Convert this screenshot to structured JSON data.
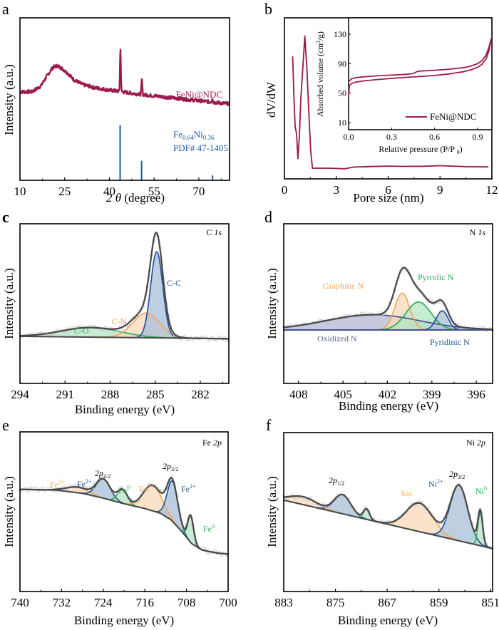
{
  "figure": {
    "panel_labels": [
      "a",
      "b",
      "c",
      "d",
      "e",
      "f"
    ]
  },
  "colors": {
    "xrd_curve": "#9b1b4e",
    "ref_stick": "#1f57a6",
    "envelope": "#4a4a4a",
    "blue_comp": "#22569a",
    "blue_fill": "#a9bfd8",
    "orange_comp": "#f4a65a",
    "orange_fill": "#f8d9b8",
    "green_comp": "#2ab058",
    "green_fill": "#b6e4c4",
    "purple_comp": "#4a4f8c",
    "purple_fill": "#b4b8d4",
    "brown_fill": "#c8a898",
    "raw_points": "#c8c8c8"
  },
  "chart_data": [
    {
      "id": "a",
      "type": "line",
      "title": "",
      "xlabel": "2 θ (degree)",
      "ylabel": "Intensity (a.u.)",
      "xlim": [
        10,
        80.3
      ],
      "ylim": [
        0,
        1
      ],
      "xticks": [
        10,
        25,
        40,
        55,
        70
      ],
      "yticks": [],
      "series": [
        {
          "name": "FeNi@NDC",
          "type": "xrd",
          "baseline_points": [
            [
              10,
              0.545
            ],
            [
              14,
              0.545
            ],
            [
              17,
              0.58
            ],
            [
              19,
              0.64
            ],
            [
              21,
              0.695
            ],
            [
              22.5,
              0.705
            ],
            [
              24,
              0.69
            ],
            [
              26,
              0.66
            ],
            [
              28,
              0.62
            ],
            [
              31,
              0.59
            ],
            [
              35,
              0.57
            ],
            [
              40,
              0.555
            ],
            [
              43,
              0.548
            ],
            [
              46,
              0.54
            ],
            [
              50,
              0.53
            ],
            [
              55,
              0.52
            ],
            [
              60,
              0.51
            ],
            [
              65,
              0.5
            ],
            [
              70,
              0.49
            ],
            [
              75,
              0.48
            ],
            [
              80.3,
              0.47
            ]
          ],
          "peaks": [
            {
              "x": 43.7,
              "height": 0.26,
              "width": 0.35
            },
            {
              "x": 50.9,
              "height": 0.09,
              "width": 0.35
            },
            {
              "x": 74.5,
              "height": 0.025,
              "width": 0.4
            }
          ]
        },
        {
          "name": "Fe0.64Ni0.36 PDF# 47-1405",
          "type": "sticks",
          "x": [
            43.6,
            50.8,
            74.6
          ],
          "y": [
            0.34,
            0.12,
            0.03
          ]
        }
      ],
      "annotations": [
        {
          "text": "FeNi@NDC",
          "color_key": "xrd_curve"
        },
        {
          "text": "Fe",
          "sub1": "0.64",
          "text2": "Ni",
          "sub2": "0.36",
          "color_key": "ref_stick"
        },
        {
          "text": "PDF# 47-1405",
          "color_key": "ref_stick"
        }
      ]
    },
    {
      "id": "b",
      "type": "line",
      "xlabel": "Pore size (nm)",
      "ylabel": "dV/dW",
      "xlim": [
        0,
        12
      ],
      "ylim": [
        0,
        1
      ],
      "xticks": [
        0,
        3,
        6,
        9,
        12
      ],
      "series": [
        {
          "name": "PSD",
          "x": [
            0.48,
            0.55,
            0.62,
            0.7,
            0.78,
            0.86,
            0.95,
            1.05,
            1.18,
            1.3,
            1.42,
            1.52,
            1.62,
            2.0,
            2.5,
            3.0,
            3.5,
            4.0,
            5.0,
            6.0,
            7.0,
            8.0,
            9.0,
            9.5,
            10.5,
            11.8
          ],
          "y": [
            0.8,
            0.52,
            0.3,
            0.25,
            0.07,
            0.22,
            0.5,
            0.7,
            0.95,
            0.72,
            0.38,
            0.12,
            0.0,
            0.0,
            0.0,
            -0.002,
            -0.004,
            0.008,
            0.012,
            0.015,
            0.013,
            0.014,
            0.018,
            0.016,
            0.011,
            0.009
          ]
        }
      ],
      "inset": {
        "xlabel": "Relative pressure (P/P 0)",
        "ylabel": "Absorbed volume (cm3/g)",
        "xlim": [
          0,
          1.0
        ],
        "ylim": [
          0,
          145
        ],
        "xticks": [
          0.0,
          0.3,
          0.6,
          0.9
        ],
        "yticks": [
          10,
          50,
          90,
          130
        ],
        "legend": "FeNi@NDC",
        "legend_position": "bottom-right",
        "series": [
          {
            "name": "adsorption",
            "x": [
              0.0,
              0.005,
              0.02,
              0.05,
              0.1,
              0.2,
              0.3,
              0.4,
              0.5,
              0.6,
              0.7,
              0.8,
              0.85,
              0.9,
              0.93,
              0.96,
              0.98,
              0.995
            ],
            "y": [
              45,
              60,
              63,
              65,
              66.5,
              68.5,
              70,
              71.5,
              72.5,
              74,
              76,
              79,
              81.5,
              85,
              89,
              97,
              108,
              124
            ]
          },
          {
            "name": "desorption",
            "x": [
              0.995,
              0.98,
              0.96,
              0.93,
              0.9,
              0.85,
              0.8,
              0.7,
              0.6,
              0.5,
              0.48,
              0.45,
              0.4,
              0.3,
              0.2,
              0.1,
              0.05,
              0.02,
              0.005
            ],
            "y": [
              124,
              113,
              102,
              94,
              90,
              86.5,
              84.5,
              82.5,
              81,
              80,
              79.5,
              76.5,
              75.5,
              74.5,
              73.5,
              72,
              71,
              69.5,
              66
            ]
          }
        ]
      }
    },
    {
      "id": "c",
      "type": "line",
      "xlabel": "Binding energy (eV)",
      "ylabel": "Intensity (a.u.)",
      "xlim": [
        294,
        280.1
      ],
      "ylim": [
        0,
        1
      ],
      "xticks": [
        294,
        291,
        288,
        285,
        282
      ],
      "region_label": "C 1s",
      "baseline": [
        [
          294,
          0.295
        ],
        [
          280.1,
          0.28
        ]
      ],
      "components": [
        {
          "name": "C-O",
          "center": 289.3,
          "fwhm": 4.6,
          "height": 0.06,
          "color": "green"
        },
        {
          "name": "C-N",
          "center": 285.6,
          "fwhm": 2.1,
          "height": 0.155,
          "color": "orange"
        },
        {
          "name": "C-C",
          "center": 284.9,
          "fwhm": 0.95,
          "height": 0.54,
          "color": "blue"
        }
      ],
      "envelope_peak": 0.675
    },
    {
      "id": "d",
      "type": "line",
      "xlabel": "Binding energy (eV)",
      "ylabel": "Intensity (a.u.)",
      "xlim": [
        409.0,
        394.9
      ],
      "ylim": [
        0,
        1
      ],
      "xticks": [
        408,
        405,
        402,
        399,
        396
      ],
      "region_label": "N 1s",
      "baseline": [
        [
          409.0,
          0.335
        ],
        [
          394.9,
          0.335
        ]
      ],
      "components": [
        {
          "name": "Oxidized N",
          "center": 403.0,
          "fwhm": 7.5,
          "height": 0.095,
          "color": "purple"
        },
        {
          "name": "Graphitic N",
          "center": 401.0,
          "fwhm": 1.2,
          "height": 0.23,
          "color": "orange"
        },
        {
          "name": "Pyrrolic N",
          "center": 399.9,
          "fwhm": 2.0,
          "height": 0.175,
          "color": "green"
        },
        {
          "name": "Pyridinic N",
          "center": 398.3,
          "fwhm": 0.95,
          "height": 0.12,
          "color": "blue"
        }
      ]
    },
    {
      "id": "e",
      "type": "line",
      "xlabel": "Binding energy (eV)",
      "ylabel": "Intensity (a.u.)",
      "xlim": [
        740,
        700
      ],
      "ylim": [
        0,
        1
      ],
      "xticks": [
        740,
        732,
        724,
        716,
        708,
        700
      ],
      "region_label": "Fe 2p",
      "baseline": [
        [
          740,
          0.64
        ],
        [
          733,
          0.635
        ],
        [
          728,
          0.615
        ],
        [
          724,
          0.585
        ],
        [
          720,
          0.55
        ],
        [
          716,
          0.52
        ],
        [
          713,
          0.49
        ],
        [
          711,
          0.45
        ],
        [
          709,
          0.38
        ],
        [
          707,
          0.3
        ],
        [
          705,
          0.26
        ],
        [
          702,
          0.24
        ],
        [
          700,
          0.235
        ]
      ],
      "components": [
        {
          "name": "Fe3+",
          "center": 729,
          "fwhm": 5.0,
          "height": 0.035,
          "color": "orange"
        },
        {
          "name": "Fe2+",
          "center": 724,
          "fwhm": 3.2,
          "height": 0.12,
          "color": "blue"
        },
        {
          "name": "Fe0",
          "center": 720.3,
          "fwhm": 2.2,
          "height": 0.085,
          "color": "green"
        },
        {
          "name": "Fe3+",
          "center": 714.5,
          "fwhm": 4.2,
          "height": 0.16,
          "color": "orange"
        },
        {
          "name": "Fe2+",
          "center": 710.7,
          "fwhm": 2.4,
          "height": 0.25,
          "color": "blue"
        },
        {
          "name": "Fe0",
          "center": 707.2,
          "fwhm": 1.3,
          "height": 0.17,
          "color": "green"
        }
      ],
      "annotations": [
        "Fe3+",
        "Fe2+",
        "2p1/2",
        "Fe0",
        "Fe3+",
        "2p3/2",
        "Fe2+",
        "Fe0"
      ]
    },
    {
      "id": "f",
      "type": "line",
      "xlabel": "Binding energy (eV)",
      "ylabel": "Intensity (a.u.)",
      "xlim": [
        883,
        850.7
      ],
      "ylim": [
        0,
        1
      ],
      "xticks": [
        883,
        875,
        867,
        859,
        851
      ],
      "region_label": "Ni 2p",
      "baseline": [
        [
          883,
          0.575
        ],
        [
          850.7,
          0.27
        ]
      ],
      "components": [
        {
          "name": "Sat.",
          "center": 880.0,
          "fwhm": 5.0,
          "height": 0.05,
          "color": "orange"
        },
        {
          "name": "Ni2+",
          "center": 873.9,
          "fwhm": 3.0,
          "height": 0.12,
          "color": "blue"
        },
        {
          "name": "Ni0",
          "center": 870.2,
          "fwhm": 1.1,
          "height": 0.065,
          "color": "green"
        },
        {
          "name": "Sat.",
          "center": 862.0,
          "fwhm": 4.8,
          "height": 0.18,
          "color": "orange"
        },
        {
          "name": "Ni2+",
          "center": 855.9,
          "fwhm": 3.2,
          "height": 0.35,
          "color": "blue"
        },
        {
          "name": "Ni0",
          "center": 852.6,
          "fwhm": 0.85,
          "height": 0.21,
          "color": "green"
        }
      ],
      "annotations": [
        "2p1/2",
        "Sat.",
        "Ni2+",
        "2p3/2",
        "Ni0"
      ]
    }
  ],
  "labels": {
    "a_xlabel_theta": "2 θ",
    "a_xlabel_unit": " (degree)",
    "intensity": "Intensity (a.u.)",
    "b_ylabel": "dV/dW",
    "b_xlabel": "Pore size (nm)",
    "inset_ylabel_pre": "Absorbed volume (cm",
    "inset_ylabel_sup": "3",
    "inset_ylabel_post": "/g)",
    "inset_xlabel_pre": "Relative pressure (P/P ",
    "inset_xlabel_sub": "0",
    "inset_xlabel_post": ")",
    "be": "Binding energy (eV)",
    "c_region_el": "C ",
    "c_region_orb": "1s",
    "d_region_el": "N ",
    "d_region_orb": "1s",
    "e_region_el": "Fe ",
    "e_region_orb": "2p",
    "f_region_el": "Ni ",
    "f_region_orb": "2p",
    "cc": "C-C",
    "cn": "C-N",
    "co": "C-O",
    "graphitic": "Graphitic N",
    "pyrrolic": "Pyrrolic N",
    "oxidized": "Oxidized N",
    "pyridinic": "Pyridinic N",
    "fe": "Fe",
    "sup3": "3+",
    "sup2": "2+",
    "sup0": "0",
    "twop": "2p",
    "half": "1/2",
    "threehalf": "3/2",
    "ni": "Ni",
    "sat": "Sat.",
    "feni": "FeNi@NDC",
    "fe_ref": "Fe",
    "fe_sub": "0.64",
    "ni_ref": "Ni",
    "ni_sub": "0.36",
    "pdf": "PDF# 47-1405"
  }
}
